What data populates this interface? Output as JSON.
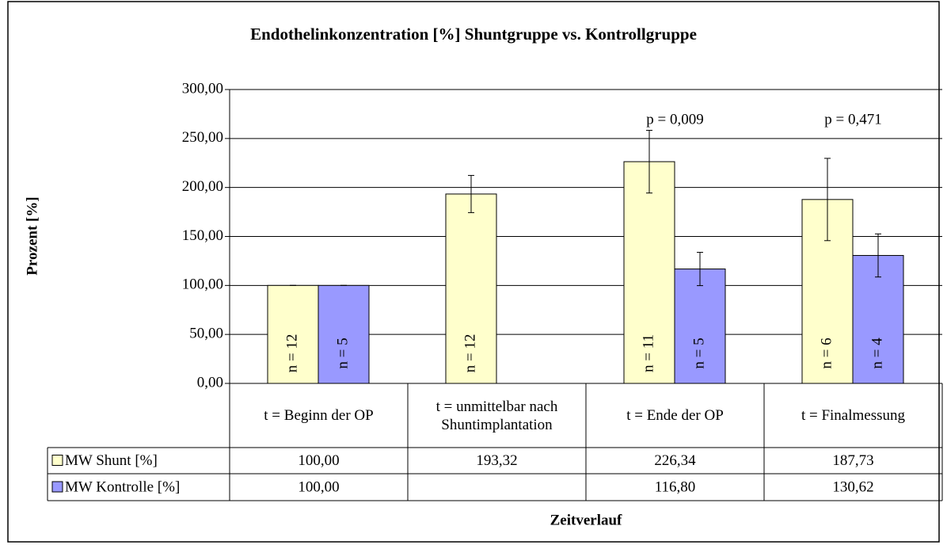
{
  "chart_data": {
    "type": "bar",
    "title": "Endothelinkonzentration [%] Shuntgruppe vs. Kontrollgruppe",
    "y_label": "Prozent [%]",
    "x_label": "Zeitverlauf",
    "categories": [
      "t = Beginn der OP",
      "t = unmittelbar nach Shuntimplantation",
      "t = Ende der OP",
      "t = Finalmessung"
    ],
    "series": [
      {
        "name": "MW Shunt [%]",
        "color": "#ffffcc",
        "values": [
          100,
          193.32,
          226.34,
          187.73
        ],
        "value_labels": [
          "100,00",
          "193,32",
          "226,34",
          "187,73"
        ],
        "errors": [
          0,
          19,
          32,
          42
        ],
        "n_labels": [
          "n = 12",
          "n = 12",
          "n = 11",
          "n = 6"
        ]
      },
      {
        "name": "MW Kontrolle [%]",
        "color": "#9999ff",
        "values": [
          100,
          null,
          116.8,
          130.62
        ],
        "value_labels": [
          "100,00",
          null,
          "116,80",
          "130,62"
        ],
        "errors": [
          0,
          null,
          17,
          22
        ],
        "n_labels": [
          "n = 5",
          null,
          "n = 5",
          "n = 4"
        ]
      }
    ],
    "p_labels": [
      null,
      null,
      "p = 0,009",
      "p = 0,471"
    ],
    "ylim": [
      0,
      300
    ],
    "yticks": [
      {
        "value": 0,
        "label": "0,00"
      },
      {
        "value": 50,
        "label": "50,00"
      },
      {
        "value": 100,
        "label": "100,00"
      },
      {
        "value": 150,
        "label": "150,00"
      },
      {
        "value": 200,
        "label": "200,00"
      },
      {
        "value": 250,
        "label": "250,00"
      },
      {
        "value": 300,
        "label": "300,00"
      }
    ],
    "grid": true
  }
}
